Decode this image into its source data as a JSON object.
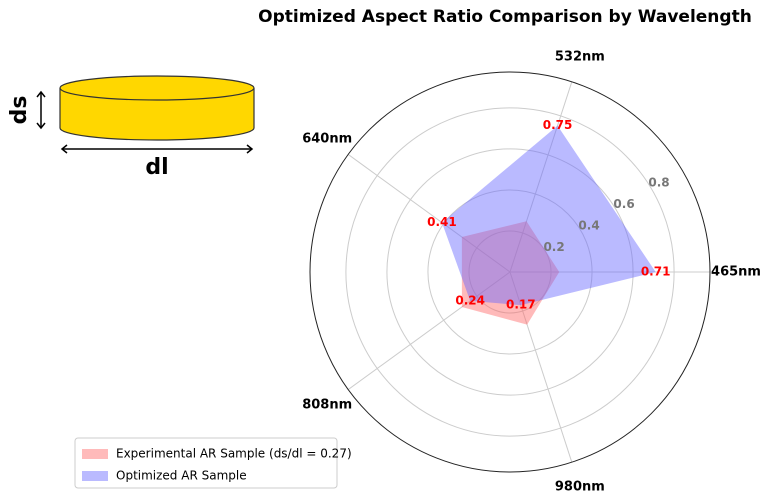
{
  "chart_data": {
    "type": "radar",
    "title": "Optimized Aspect Ratio Comparison by Wavelength",
    "categories": [
      "465nm",
      "532nm",
      "640nm",
      "808nm",
      "980nm"
    ],
    "series": [
      {
        "name": "Experimental AR Sample (ds/dl = 0.27)",
        "color": "#ff6666",
        "values": [
          0.24,
          0.26,
          0.29,
          0.29,
          0.27
        ]
      },
      {
        "name": "Optimized AR Sample",
        "color": "#6666ff",
        "values": [
          0.71,
          0.75,
          0.41,
          0.24,
          0.17
        ]
      }
    ],
    "ylim": [
      0,
      0.975
    ],
    "yticks": [
      0.2,
      0.4,
      0.6,
      0.8
    ],
    "grid": true,
    "legend": "lower left",
    "annotations": [
      "ds",
      "dl"
    ]
  }
}
